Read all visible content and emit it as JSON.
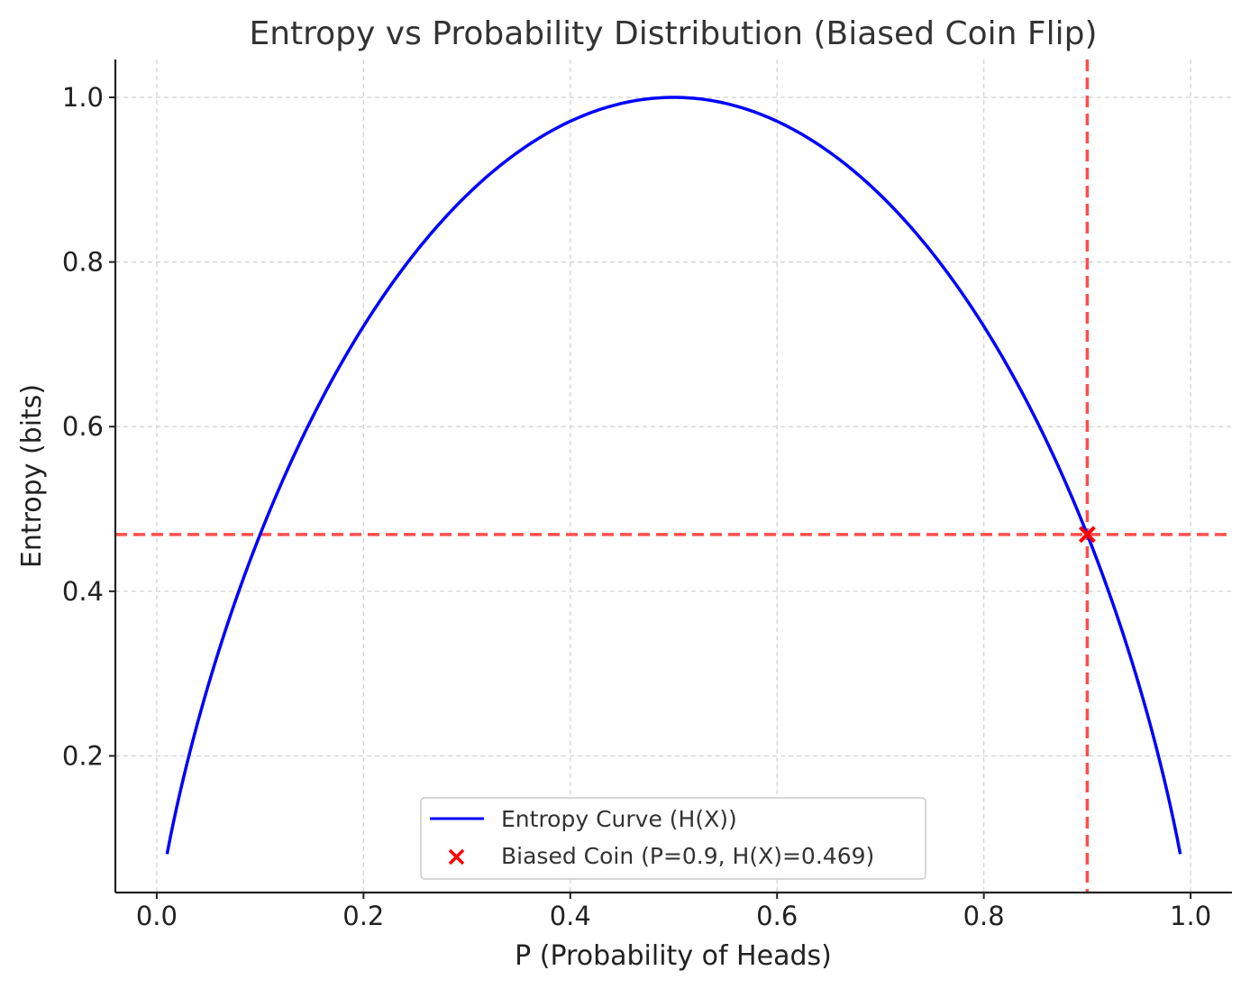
{
  "chart_data": {
    "type": "line",
    "title": "Entropy vs Probability Distribution (Biased Coin Flip)",
    "xlabel": "P (Probability of Heads)",
    "ylabel": "Entropy (bits)",
    "xlim": [
      -0.04,
      1.04
    ],
    "ylim": [
      0.034,
      1.046
    ],
    "xticks": [
      0.0,
      0.2,
      0.4,
      0.6,
      0.8,
      1.0
    ],
    "xtick_labels": [
      "0.0",
      "0.2",
      "0.4",
      "0.6",
      "0.8",
      "1.0"
    ],
    "yticks": [
      0.2,
      0.4,
      0.6,
      0.8,
      1.0
    ],
    "ytick_labels": [
      "0.2",
      "0.4",
      "0.6",
      "0.8",
      "1.0"
    ],
    "grid": true,
    "legend_position": "lower center",
    "series": [
      {
        "name": "Entropy Curve (H(X))",
        "kind": "line",
        "color": "#0000ff",
        "x": [
          0.01,
          0.03,
          0.05,
          0.07,
          0.1,
          0.15,
          0.2,
          0.25,
          0.3,
          0.35,
          0.4,
          0.45,
          0.5,
          0.55,
          0.6,
          0.65,
          0.7,
          0.75,
          0.8,
          0.85,
          0.9,
          0.93,
          0.95,
          0.97,
          0.99
        ],
        "y": [
          0.081,
          0.194,
          0.286,
          0.366,
          0.469,
          0.61,
          0.722,
          0.811,
          0.881,
          0.934,
          0.971,
          0.993,
          1.0,
          0.993,
          0.971,
          0.934,
          0.881,
          0.811,
          0.722,
          0.61,
          0.469,
          0.366,
          0.286,
          0.194,
          0.081
        ]
      },
      {
        "name": "Biased Coin (P=0.9, H(X)=0.469)",
        "kind": "scatter",
        "marker": "x",
        "color": "#ff0000",
        "x": [
          0.9
        ],
        "y": [
          0.469
        ]
      }
    ],
    "reference_lines": [
      {
        "orientation": "vertical",
        "x": 0.9,
        "color": "#ff4d4d",
        "style": "dashed"
      },
      {
        "orientation": "horizontal",
        "y": 0.469,
        "color": "#ff4d4d",
        "style": "dashed"
      }
    ]
  }
}
